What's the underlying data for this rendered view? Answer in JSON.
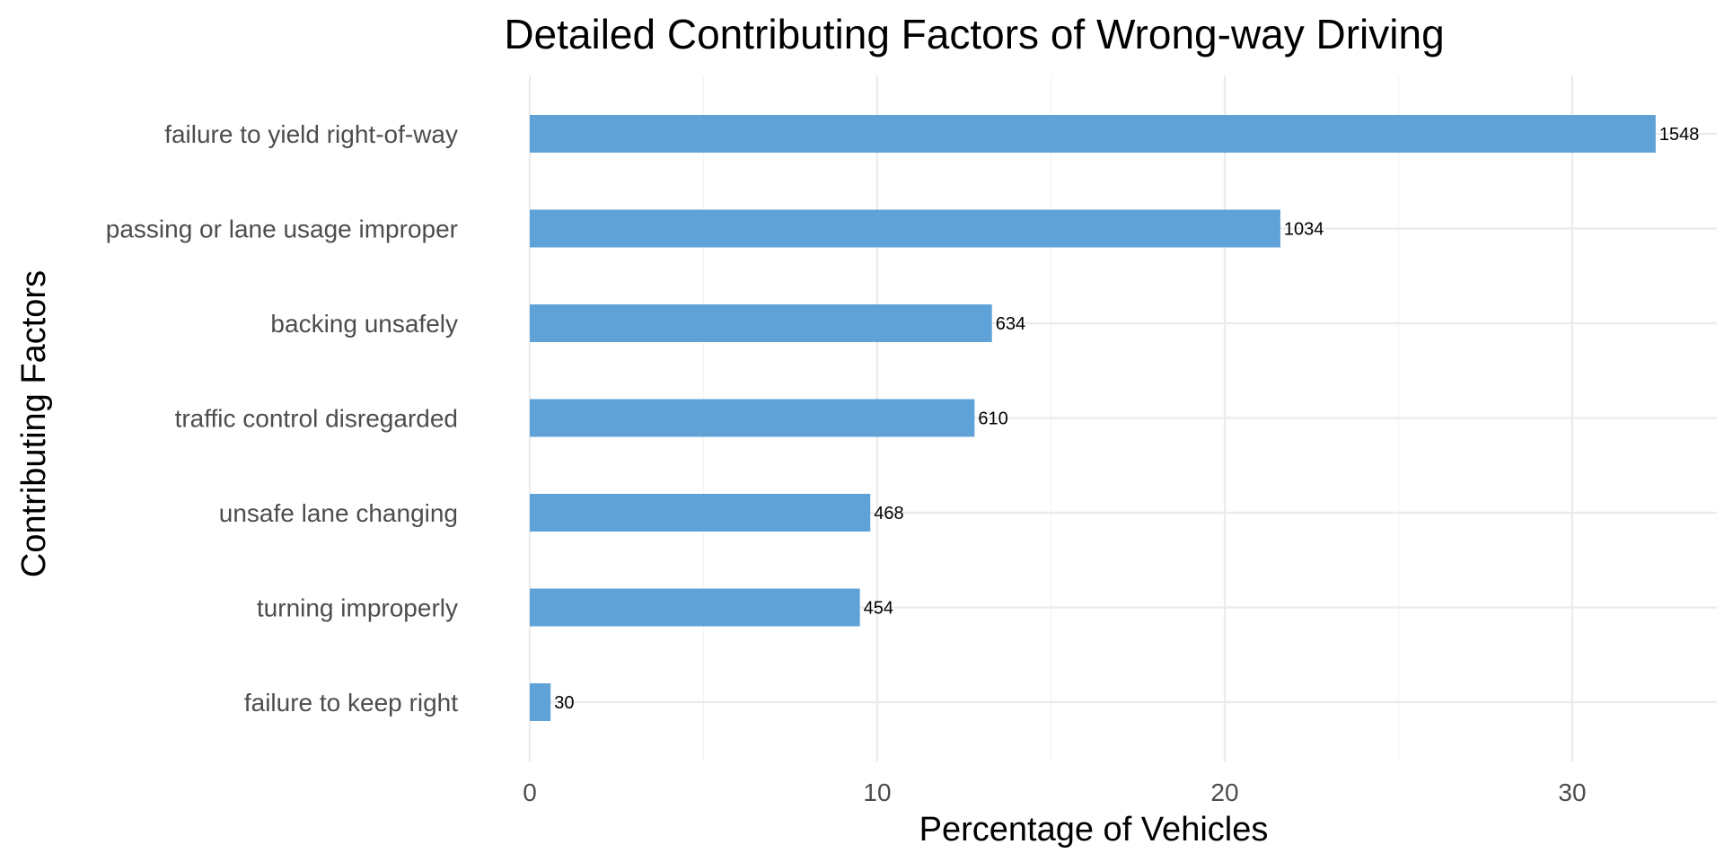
{
  "chart_data": {
    "type": "bar",
    "orientation": "horizontal",
    "title": "Detailed Contributing Factors of Wrong-way Driving",
    "xlabel": "Percentage of Vehicles",
    "ylabel": "Contributing Factors",
    "xlim": [
      0,
      33.5
    ],
    "x_ticks": [
      0,
      10,
      20,
      30
    ],
    "x_tick_labels": [
      "0",
      "10",
      "20",
      "30"
    ],
    "grid": true,
    "bar_color": "#5fa2d8",
    "categories": [
      "failure to yield right-of-way",
      "passing or lane usage improper",
      "backing unsafely",
      "traffic control disregarded",
      "unsafe lane changing",
      "turning improperly",
      "failure to keep right"
    ],
    "values": [
      32.4,
      21.6,
      13.3,
      12.8,
      9.8,
      9.5,
      0.6
    ],
    "data_labels": [
      "1548",
      "1034",
      "634",
      "610",
      "468",
      "454",
      "30"
    ]
  }
}
